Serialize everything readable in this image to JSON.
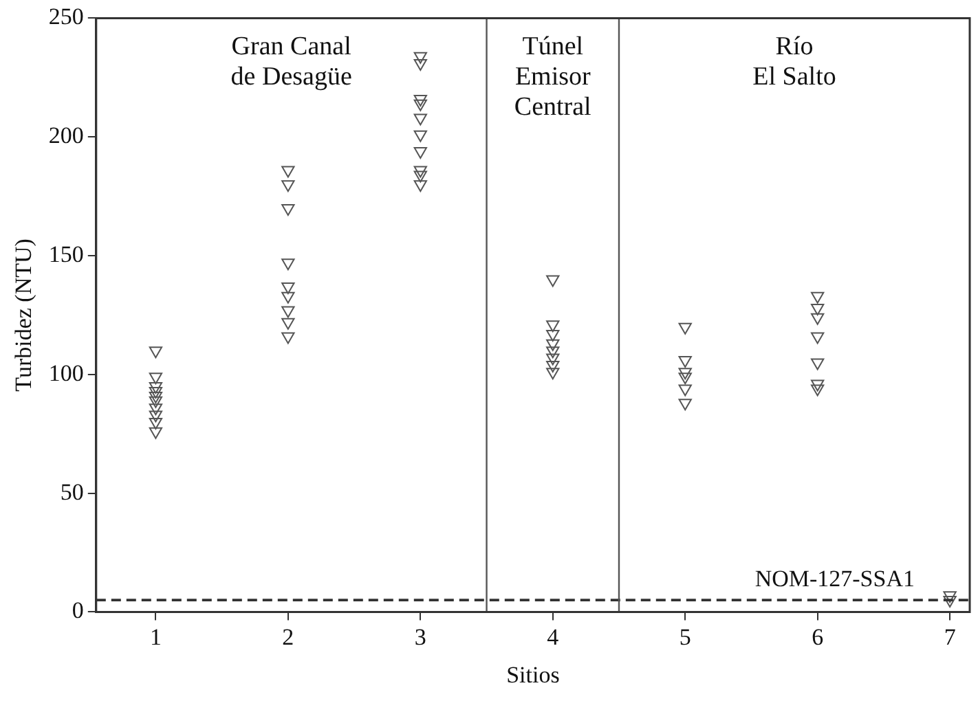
{
  "chart_data": {
    "type": "scatter",
    "xlabel": "Sitios",
    "ylabel": "Turbidez (NTU)",
    "series": [
      {
        "color": "#555555",
        "x": [
          1,
          1,
          1,
          1,
          1,
          1,
          1,
          1,
          1,
          1,
          2,
          2,
          2,
          2,
          2,
          2,
          2,
          2,
          2,
          3,
          3,
          3,
          3,
          3,
          3,
          3,
          3,
          3,
          3,
          4,
          4,
          4,
          4,
          4,
          4,
          4,
          4,
          5,
          5,
          5,
          5,
          5,
          5,
          6,
          6,
          6,
          6,
          6,
          6,
          6,
          7,
          7
        ],
        "values": [
          110,
          99,
          95,
          93,
          91,
          89,
          86,
          83,
          80,
          76,
          186,
          180,
          170,
          147,
          137,
          133,
          127,
          122,
          116,
          234,
          231,
          216,
          214,
          208,
          201,
          194,
          186,
          184,
          180,
          140,
          121,
          117,
          113,
          110,
          107,
          104,
          101,
          120,
          106,
          101,
          99,
          94,
          88,
          133,
          128,
          124,
          116,
          105,
          96,
          94,
          7,
          5
        ]
      }
    ],
    "xlim": [
      0.55,
      7.15
    ],
    "xticks": [
      1,
      2,
      3,
      4,
      5,
      6,
      7
    ],
    "ylim": [
      0,
      250
    ],
    "yticks": [
      0,
      50,
      100,
      150,
      200,
      250
    ],
    "marker": "triangle",
    "grid": false,
    "legend": false,
    "ref_lines": [
      {
        "axis": "y",
        "value": 5,
        "label": "NOM-127-SSA1",
        "line_style": "dashed",
        "color": "#333333"
      },
      {
        "axis": "x",
        "value": 3.5,
        "color": "#555555"
      },
      {
        "axis": "x",
        "value": 4.5,
        "color": "#555555"
      }
    ],
    "annotations": [
      "Gran Canal\nde Desagüe",
      "Túnel\nEmisor\nCentral",
      "Río\nEl Salto"
    ]
  }
}
